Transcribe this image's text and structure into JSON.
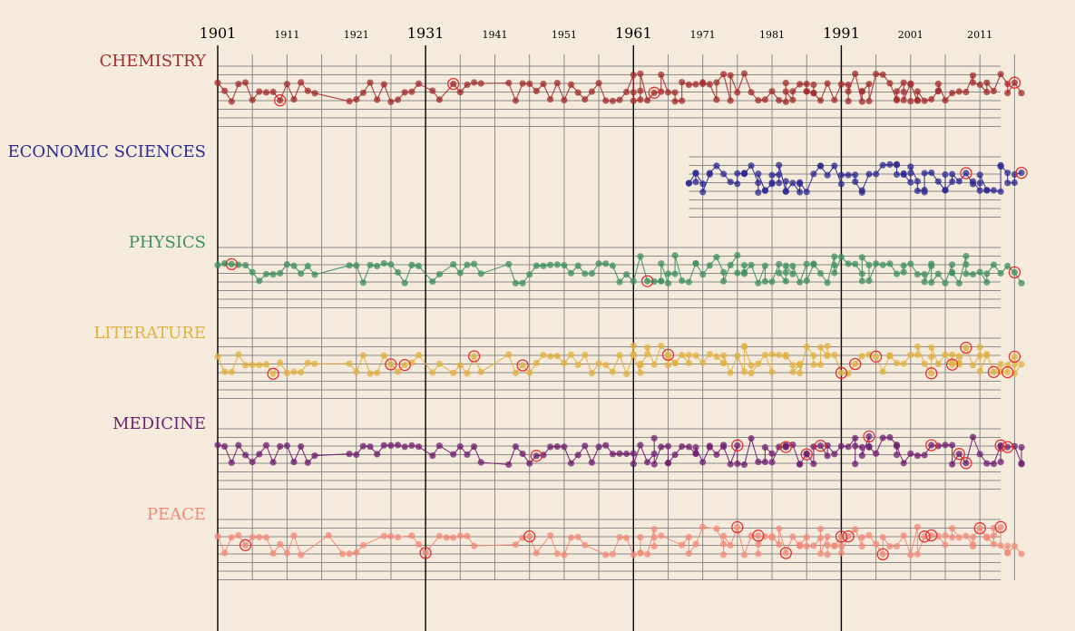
{
  "chart_data": {
    "type": "scatter",
    "x_axis": {
      "min": 1901,
      "max": 2017,
      "major_ticks": [
        1901,
        1931,
        1961,
        1991
      ],
      "minor_ticks": [
        1911,
        1921,
        1941,
        1951,
        1971,
        1981,
        2001,
        2011
      ]
    },
    "series": [
      {
        "name": "CHEMISTRY",
        "color": "#a02c2c",
        "start": 1901,
        "seed": 11,
        "highlights": [
          1910,
          1935,
          1964,
          2016
        ]
      },
      {
        "name": "ECONOMIC SCIENCES",
        "color": "#2e2a8f",
        "start": 1969,
        "seed": 23,
        "highlights": [
          2009,
          2017
        ]
      },
      {
        "name": "PHYSICS",
        "color": "#3f8f5f",
        "start": 1901,
        "seed": 37,
        "highlights": [
          1903,
          1963,
          2016
        ]
      },
      {
        "name": "LITERATURE",
        "color": "#e0b040",
        "start": 1901,
        "seed": 41,
        "highlights": [
          1909,
          1926,
          1928,
          1938,
          1945,
          1966,
          1991,
          1993,
          1996,
          2004,
          2007,
          2009,
          2013,
          2015,
          2016
        ]
      },
      {
        "name": "MEDICINE",
        "color": "#6e1f6e",
        "start": 1901,
        "seed": 53,
        "highlights": [
          1947,
          1976,
          1983,
          1986,
          1988,
          1995,
          2004,
          2008,
          2009,
          2014,
          2015
        ]
      },
      {
        "name": "PEACE",
        "color": "#f08a78",
        "start": 1901,
        "seed": 67,
        "highlights": [
          1905,
          1931,
          1946,
          1976,
          1979,
          1983,
          1991,
          1992,
          1997,
          2003,
          2004,
          2011,
          2014
        ]
      }
    ]
  }
}
